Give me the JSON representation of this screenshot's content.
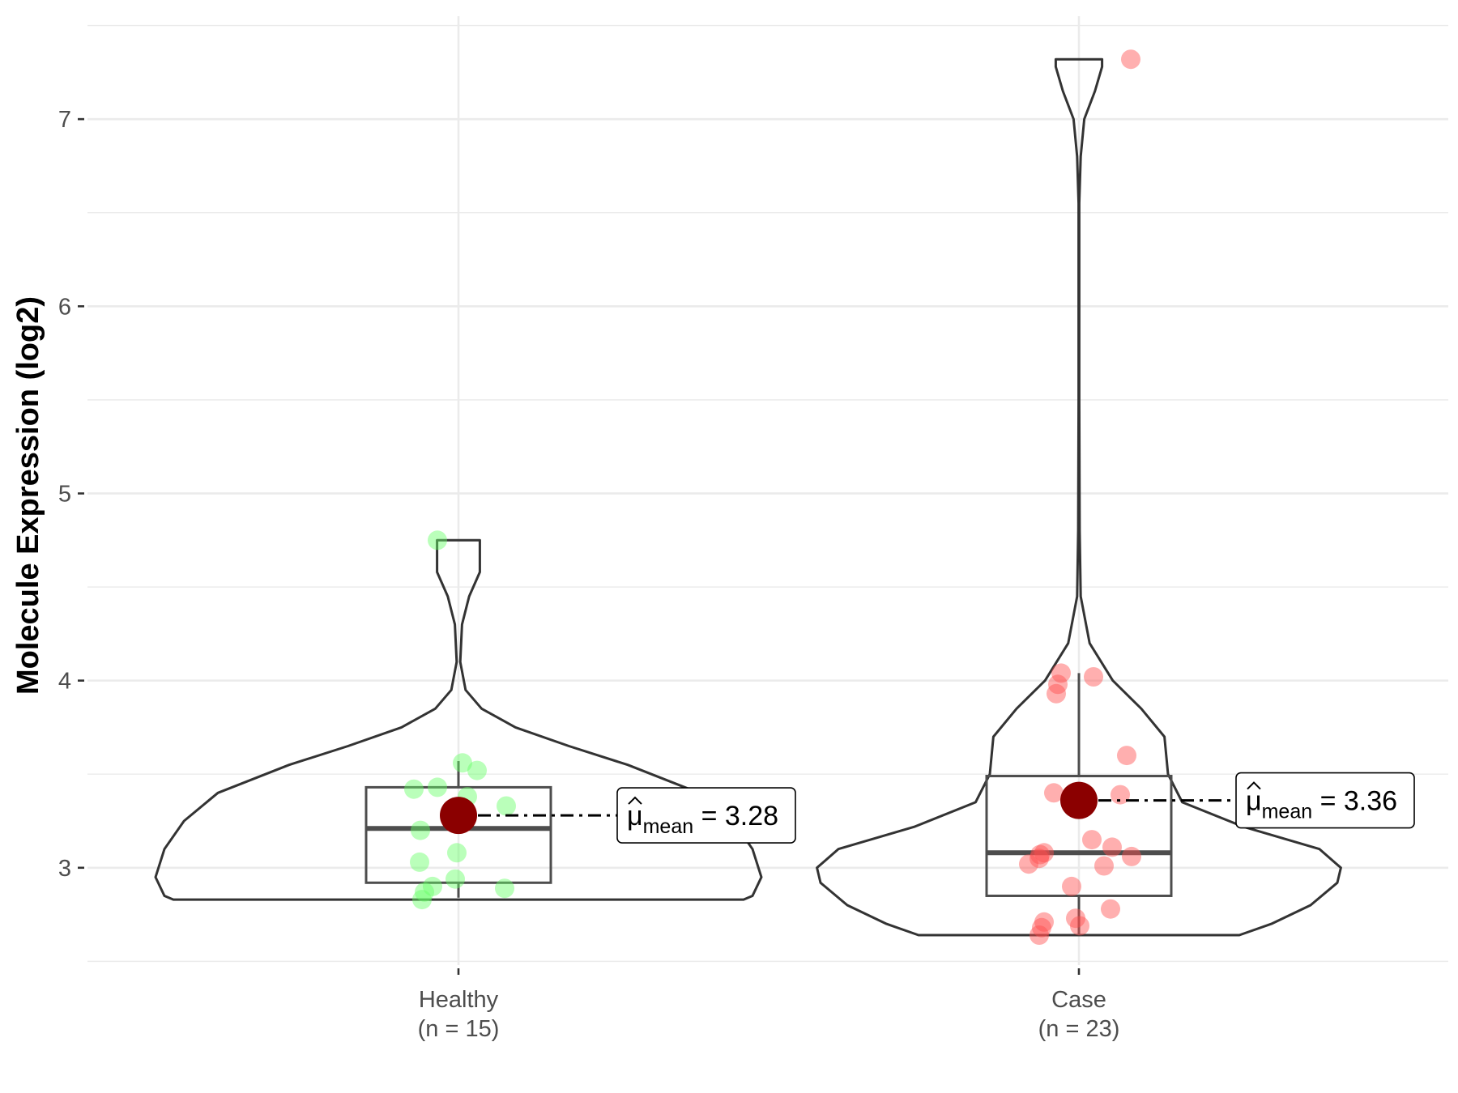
{
  "chart_data": {
    "type": "violin",
    "ylabel": "Molecule Expression (log2)",
    "xlabel": "",
    "ylim": [
      2.48,
      7.55
    ],
    "y_ticks": [
      3,
      4,
      5,
      6,
      7
    ],
    "grid": true,
    "legend": "none",
    "categories": [
      {
        "name": "Healthy",
        "n_label": "(n = 15)",
        "n": 15
      },
      {
        "name": "Case",
        "n_label": "(n = 23)",
        "n": 23
      }
    ],
    "series": [
      {
        "name": "Healthy",
        "point_color": "#66ff66",
        "points": [
          4.75,
          3.56,
          3.52,
          3.43,
          3.42,
          3.38,
          3.33,
          3.2,
          3.08,
          3.03,
          2.94,
          2.9,
          2.89,
          2.87,
          2.83
        ],
        "jitter": [
          -0.26,
          0.05,
          0.23,
          -0.26,
          -0.55,
          0.11,
          0.59,
          -0.47,
          -0.02,
          -0.48,
          -0.04,
          -0.32,
          0.57,
          -0.42,
          -0.45
        ],
        "box": {
          "q1": 2.92,
          "median": 3.21,
          "q3": 3.43,
          "whisker_low": 2.84,
          "whisker_high": 3.57
        },
        "violin": [
          [
            2.83,
            0.0
          ],
          [
            2.83,
            1.6
          ],
          [
            2.85,
            1.65
          ],
          [
            2.95,
            1.7
          ],
          [
            3.1,
            1.65
          ],
          [
            3.25,
            1.54
          ],
          [
            3.4,
            1.35
          ],
          [
            3.55,
            0.95
          ],
          [
            3.65,
            0.62
          ],
          [
            3.75,
            0.32
          ],
          [
            3.85,
            0.13
          ],
          [
            3.95,
            0.04
          ],
          [
            4.1,
            0.01
          ],
          [
            4.3,
            0.02
          ],
          [
            4.45,
            0.06
          ],
          [
            4.58,
            0.12
          ],
          [
            4.68,
            0.12
          ],
          [
            4.75,
            0.12
          ]
        ],
        "mean": 3.28,
        "mean_label": {
          "prefix": "μ",
          "sub": "mean",
          "eq": " = ",
          "value": "3.28"
        }
      },
      {
        "name": "Case",
        "point_color": "#ff4d4d",
        "points": [
          7.32,
          4.04,
          4.02,
          3.98,
          3.93,
          3.6,
          3.4,
          3.39,
          3.15,
          3.11,
          3.08,
          3.07,
          3.06,
          3.05,
          3.02,
          3.01,
          2.9,
          2.78,
          2.73,
          2.71,
          2.69,
          2.68,
          2.64
        ],
        "jitter": [
          0.64,
          -0.22,
          0.18,
          -0.26,
          -0.28,
          0.59,
          -0.31,
          0.51,
          0.16,
          0.41,
          -0.43,
          -0.48,
          0.65,
          -0.49,
          -0.62,
          0.31,
          -0.09,
          0.39,
          -0.04,
          -0.43,
          0.01,
          -0.46,
          -0.49
        ],
        "box": {
          "q1": 2.85,
          "median": 3.08,
          "q3": 3.49,
          "whisker_low": 2.64,
          "whisker_high": 4.04
        },
        "violin": [
          [
            2.64,
            0.0
          ],
          [
            2.64,
            0.9
          ],
          [
            2.7,
            1.08
          ],
          [
            2.8,
            1.3
          ],
          [
            2.92,
            1.45
          ],
          [
            3.0,
            1.47
          ],
          [
            3.1,
            1.35
          ],
          [
            3.22,
            0.92
          ],
          [
            3.35,
            0.58
          ],
          [
            3.5,
            0.5
          ],
          [
            3.7,
            0.48
          ],
          [
            3.85,
            0.35
          ],
          [
            4.0,
            0.19
          ],
          [
            4.2,
            0.06
          ],
          [
            4.45,
            0.01
          ],
          [
            4.8,
            0.004
          ],
          [
            5.5,
            0.002
          ],
          [
            6.0,
            0.002
          ],
          [
            6.55,
            0.002
          ],
          [
            6.8,
            0.01
          ],
          [
            7.0,
            0.03
          ],
          [
            7.15,
            0.09
          ],
          [
            7.28,
            0.13
          ],
          [
            7.32,
            0.13
          ]
        ],
        "mean": 3.36,
        "mean_label": {
          "prefix": "μ",
          "sub": "mean",
          "eq": " = ",
          "value": "3.36"
        }
      }
    ]
  }
}
